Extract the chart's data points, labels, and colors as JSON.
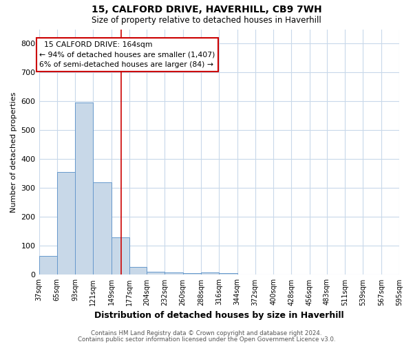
{
  "title1": "15, CALFORD DRIVE, HAVERHILL, CB9 7WH",
  "title2": "Size of property relative to detached houses in Haverhill",
  "xlabel": "Distribution of detached houses by size in Haverhill",
  "ylabel": "Number of detached properties",
  "footnote1": "Contains HM Land Registry data © Crown copyright and database right 2024.",
  "footnote2": "Contains public sector information licensed under the Open Government Licence v3.0.",
  "bin_edges": [
    37,
    65,
    93,
    121,
    149,
    177,
    204,
    232,
    260,
    288,
    316,
    344,
    372,
    400,
    428,
    456,
    483,
    511,
    539,
    567,
    595
  ],
  "bar_heights": [
    65,
    357,
    597,
    320,
    130,
    28,
    10,
    8,
    5,
    8,
    5,
    0,
    0,
    0,
    0,
    0,
    0,
    0,
    0,
    0
  ],
  "bar_color": "#c8d8e8",
  "bar_edge_color": "#6699cc",
  "property_size": 164,
  "red_line_color": "#cc0000",
  "annotation_text_line1": "15 CALFORD DRIVE: 164sqm",
  "annotation_text_line2": "← 94% of detached houses are smaller (1,407)",
  "annotation_text_line3": "6% of semi-detached houses are larger (84) →",
  "annotation_box_color": "#cc0000",
  "ylim": [
    0,
    850
  ],
  "yticks": [
    0,
    100,
    200,
    300,
    400,
    500,
    600,
    700,
    800
  ],
  "background_color": "#ffffff",
  "grid_color": "#c8d8ea"
}
